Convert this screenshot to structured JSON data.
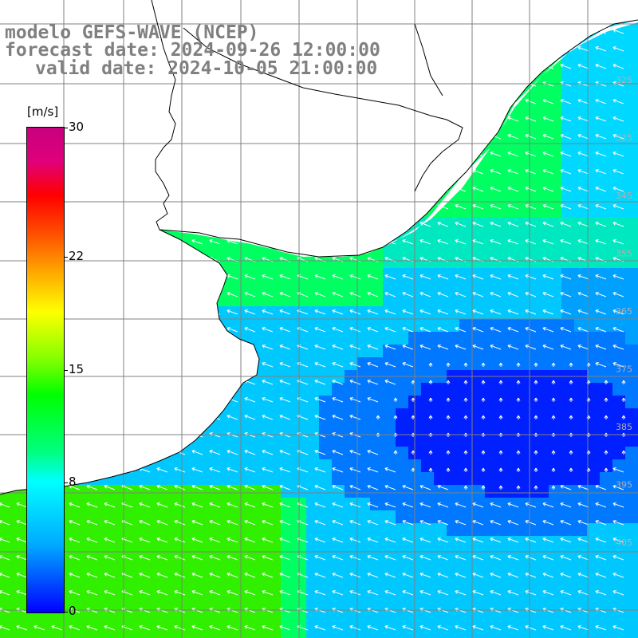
{
  "title": {
    "line1": "modelo GEFS-WAVE (NCEP)",
    "line2": "forecast date: 2024-09-26 12:00:00",
    "line3": "valid date: 2024-10-05 21:00:00"
  },
  "colorbar": {
    "unit": "[m/s]",
    "ticks": [
      "30",
      "22",
      "15",
      "8",
      "0"
    ],
    "tick_values": [
      30,
      22,
      15,
      8,
      0
    ],
    "min": 0,
    "max": 30,
    "colors": [
      "#0000ff",
      "#00aaff",
      "#00ffff",
      "#00ff80",
      "#00ff00",
      "#80ff00",
      "#ffff00",
      "#ffaa00",
      "#ff5000",
      "#ff0000",
      "#c8007f"
    ]
  },
  "map": {
    "grid_color": "#808080",
    "land_color": "#ffffff",
    "coast_color": "#000000",
    "arrow_color": "#ffffff",
    "right_labels": [
      "325",
      "335",
      "345",
      "355",
      "365",
      "375",
      "385",
      "395",
      "405"
    ],
    "ocean_colors": {
      "calm": "#0020ff",
      "moderate": "#00c8ff",
      "fresh": "#00ff60",
      "strong": "#30f000"
    }
  }
}
